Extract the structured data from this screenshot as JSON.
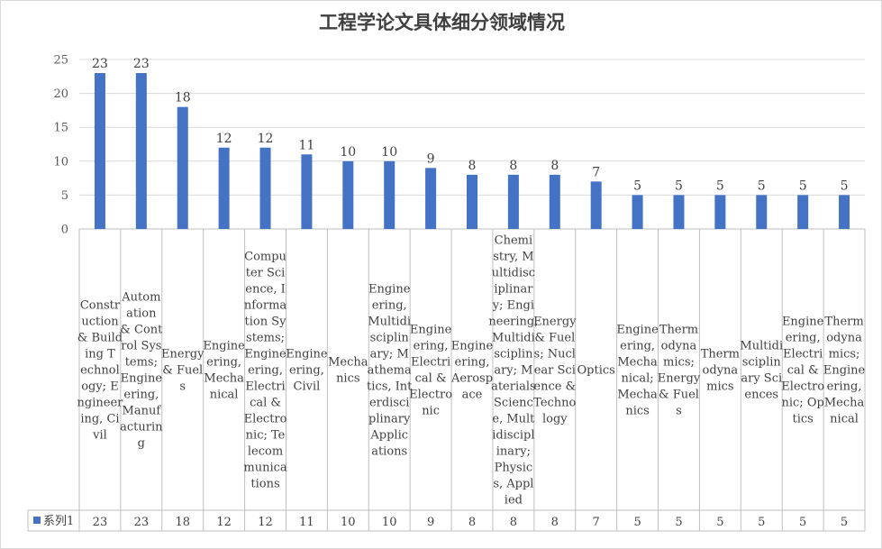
{
  "chart_data": {
    "type": "bar",
    "title": "工程学论文具体细分领域情况",
    "categories": [
      "Construction & Building Technology; Engineering, Civil",
      "Automation & Control Systems; Engineering, Manufacturing",
      "Energy & Fuels",
      "Engineering, Mechanical",
      "Computer Science, Information Systems; Engineering, Electrical & Electronic; Telecommunications",
      "Engineering, Civil",
      "Mechanics",
      "Engineering, Multidisciplinary; Mathematics, Interdisciplinary Applications",
      "Engineering, Electrical & Electronic",
      "Engineering, Aerospace",
      "Chemistry, Multidisciplinary; Engineering, Multidisciplinary; Materials Science, Multidisciplinary; Physics, Applied",
      "Energy & Fuels; Nuclear Science & Technology",
      "Optics",
      "Engineering, Mechanical; Mechanics",
      "Thermodynamics; Energy & Fuels",
      "Thermodynamics",
      "Multidisciplinary Sciences",
      "Engineering, Electrical & Electronic; Optics",
      "Thermodynamics; Engineering, Mechanical"
    ],
    "category_lines": [
      [
        "Constr",
        "uction",
        "& Build",
        "ing T",
        "echnol",
        "ogy; E",
        "ngineer",
        "ing, Ci",
        "vil"
      ],
      [
        "Autom",
        "ation",
        "& Cont",
        "rol Sys",
        "tems;",
        "Engine",
        "ering,",
        "Manuf",
        "acturin",
        "g"
      ],
      [
        "Energy",
        "& Fuel",
        "s"
      ],
      [
        "Engine",
        "ering,",
        "Mecha",
        "nical"
      ],
      [
        "Compu",
        "ter Sci",
        "ence, I",
        "nforma",
        "tion Sy",
        "stems;",
        "Engine",
        "ering,",
        "Electri",
        "cal &",
        "Electro",
        "nic; Te",
        "lecom",
        "munica",
        "tions"
      ],
      [
        "Engine",
        "ering,",
        "Civil"
      ],
      [
        "Mecha",
        "nics"
      ],
      [
        "Engine",
        "ering,",
        "Multidi",
        "sciplin",
        "ary; M",
        "athema",
        "tics, Int",
        "erdisci",
        "plinary",
        "Applic",
        "ations"
      ],
      [
        "Engine",
        "ering,",
        "Electri",
        "cal &",
        "Electro",
        "nic"
      ],
      [
        "Engine",
        "ering,",
        "Aerosp",
        "ace"
      ],
      [
        "Chemi",
        "stry, M",
        "ultidisc",
        "iplinar",
        "y; Engi",
        "neering,",
        "Multidi",
        "sciplin",
        "ary; M",
        "aterials",
        "Scienc",
        "e, Mult",
        "idiscipl",
        "inary;",
        "Physic",
        "s, Appl",
        "ied"
      ],
      [
        "Energy",
        "& Fuel",
        "s; Nucl",
        "ear Sci",
        "ence &",
        "Techno",
        "logy"
      ],
      [
        "Optics"
      ],
      [
        "Engine",
        "ering,",
        "Mecha",
        "nical;",
        "Mecha",
        "nics"
      ],
      [
        "Therm",
        "odyna",
        "mics;",
        "Energy",
        "& Fuel",
        "s"
      ],
      [
        "Therm",
        "odyna",
        "mics"
      ],
      [
        "Multidi",
        "sciplin",
        "ary Sci",
        "ences"
      ],
      [
        "Engine",
        "ering,",
        "Electri",
        "cal &",
        "Electro",
        "nic; Op",
        "tics"
      ],
      [
        "Therm",
        "odyna",
        "mics;",
        "Engine",
        "ering,",
        "Mecha",
        "nical"
      ]
    ],
    "series": [
      {
        "name": "系列1",
        "values": [
          23,
          23,
          18,
          12,
          12,
          11,
          10,
          10,
          9,
          8,
          8,
          8,
          7,
          5,
          5,
          5,
          5,
          5,
          5
        ]
      }
    ],
    "ylim": [
      0,
      25
    ],
    "yticks": [
      "0",
      "5",
      "10",
      "15",
      "20",
      "25"
    ],
    "grid": true,
    "legend": "data-table-left",
    "bar_color": "#4472C4",
    "grid_color": "#d9d9d9",
    "border_color": "#bfbfbf"
  }
}
